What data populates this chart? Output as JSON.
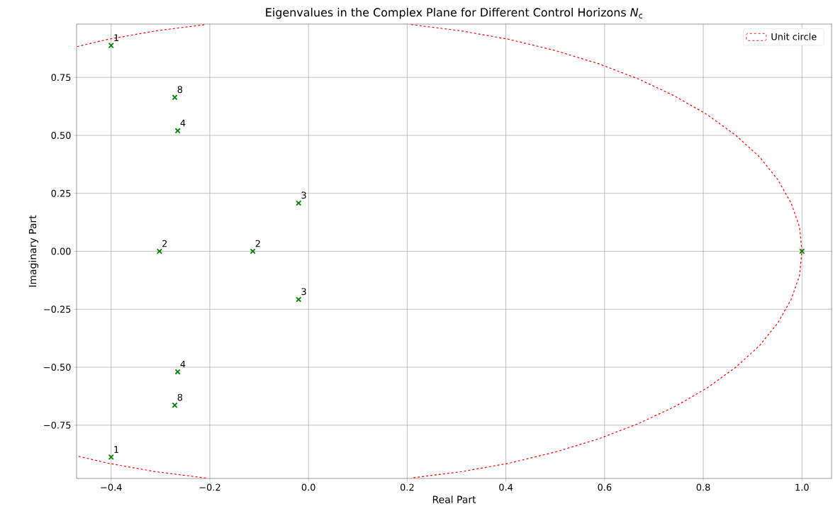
{
  "chart_data": {
    "type": "scatter",
    "title": "Eigenvalues in the Complex Plane for Different Control Horizons *N*$_{c}$",
    "xlabel": "Real Part",
    "ylabel": "Imaginary Part",
    "xlim": [
      -0.47,
      1.06
    ],
    "ylim": [
      -0.98,
      0.98
    ],
    "xticks": [
      {
        "value": -0.4,
        "label": "−0.4"
      },
      {
        "value": -0.2,
        "label": "−0.2"
      },
      {
        "value": 0.0,
        "label": "0.0"
      },
      {
        "value": 0.2,
        "label": "0.2"
      },
      {
        "value": 0.4,
        "label": "0.4"
      },
      {
        "value": 0.6,
        "label": "0.6"
      },
      {
        "value": 0.8,
        "label": "0.8"
      },
      {
        "value": 1.0,
        "label": "1.0"
      }
    ],
    "yticks": [
      {
        "value": -0.75,
        "label": "−0.75"
      },
      {
        "value": -0.5,
        "label": "−0.50"
      },
      {
        "value": -0.25,
        "label": "−0.25"
      },
      {
        "value": 0.0,
        "label": "0.00"
      },
      {
        "value": 0.25,
        "label": "0.25"
      },
      {
        "value": 0.5,
        "label": "0.50"
      },
      {
        "value": 0.75,
        "label": "0.75"
      }
    ],
    "grid": true,
    "legend": "top right",
    "series": [
      {
        "color": "#008000",
        "marker": "cross",
        "x": [
          -0.4,
          -0.4,
          -0.302,
          -0.113,
          -0.02,
          -0.02,
          -0.265,
          -0.265,
          -0.271,
          -0.271,
          1.0
        ],
        "values": [
          0.888,
          -0.888,
          0.0,
          0.0,
          0.208,
          -0.208,
          0.52,
          -0.52,
          0.664,
          -0.664,
          0.0
        ]
      },
      {
        "type": "line",
        "name": "Unit circle",
        "color": "#ff0000",
        "line_style": "dashed",
        "marker": "none",
        "x": [
          -0.469,
          -0.407,
          -0.309,
          -0.208,
          null,
          0.208,
          0.309,
          0.407,
          0.5,
          0.588,
          0.669,
          0.743,
          0.809,
          0.866,
          0.914,
          0.951,
          0.978,
          0.995,
          1.0,
          0.995,
          0.978,
          0.951,
          0.914,
          0.866,
          0.809,
          0.743,
          0.669,
          0.588,
          0.5,
          0.407,
          0.309,
          0.208,
          null,
          -0.208,
          -0.309,
          -0.407,
          -0.469
        ],
        "values": [
          0.883,
          0.914,
          0.951,
          0.978,
          null,
          0.978,
          0.951,
          0.914,
          0.866,
          0.809,
          0.743,
          0.669,
          0.588,
          0.5,
          0.407,
          0.309,
          0.208,
          0.105,
          0.0,
          -0.105,
          -0.208,
          -0.309,
          -0.407,
          -0.5,
          -0.588,
          -0.669,
          -0.743,
          -0.809,
          -0.866,
          -0.914,
          -0.951,
          -0.978,
          null,
          -0.978,
          -0.951,
          -0.914,
          -0.883
        ]
      }
    ],
    "annotations": [
      {
        "text": "1",
        "x": -0.4,
        "y": 0.888
      },
      {
        "text": "1",
        "x": -0.4,
        "y": -0.888
      },
      {
        "text": "2",
        "x": -0.302,
        "y": 0.0
      },
      {
        "text": "2",
        "x": -0.113,
        "y": 0.0
      },
      {
        "text": "3",
        "x": -0.02,
        "y": 0.208
      },
      {
        "text": "3",
        "x": -0.02,
        "y": -0.208
      },
      {
        "text": "4",
        "x": -0.265,
        "y": 0.52
      },
      {
        "text": "4",
        "x": -0.265,
        "y": -0.52
      },
      {
        "text": "8",
        "x": -0.271,
        "y": 0.664
      },
      {
        "text": "8",
        "x": -0.271,
        "y": -0.664
      }
    ]
  }
}
